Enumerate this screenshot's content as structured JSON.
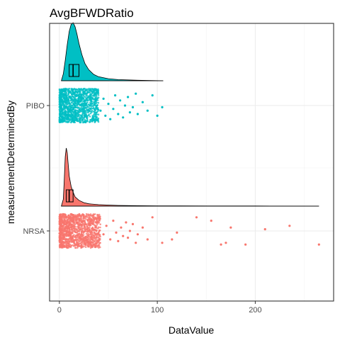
{
  "chart_data": {
    "type": "raincloud",
    "title": "AvgBFWDRatio",
    "xlabel": "DataValue",
    "ylabel": "measurementDeterminedBy",
    "xlim": [
      -10,
      280
    ],
    "x_ticks": [
      0,
      100,
      200
    ],
    "grid": true,
    "legend": "none",
    "categories": [
      "NRSA",
      "PIBO"
    ],
    "series": [
      {
        "name": "NRSA",
        "color": "#F8766D",
        "box": {
          "q1": 7,
          "median": 10,
          "q3": 14
        },
        "max": 265,
        "density": [
          [
            2,
            0
          ],
          [
            4,
            0.12
          ],
          [
            5,
            0.45
          ],
          [
            6,
            0.85
          ],
          [
            7,
            1.0
          ],
          [
            8,
            0.92
          ],
          [
            9,
            0.72
          ],
          [
            10,
            0.52
          ],
          [
            12,
            0.34
          ],
          [
            14,
            0.24
          ],
          [
            16,
            0.16
          ],
          [
            20,
            0.1
          ],
          [
            25,
            0.06
          ],
          [
            30,
            0.04
          ],
          [
            40,
            0.025
          ],
          [
            50,
            0.018
          ],
          [
            60,
            0.012
          ],
          [
            80,
            0.007
          ],
          [
            100,
            0.005
          ],
          [
            150,
            0.003
          ],
          [
            200,
            0.002
          ],
          [
            265,
            0
          ]
        ],
        "dense_range": [
          0,
          42
        ],
        "outliers": [
          [
            45,
            0.2
          ],
          [
            48,
            -0.3
          ],
          [
            52,
            0.5
          ],
          [
            55,
            -0.6
          ],
          [
            58,
            0.1
          ],
          [
            60,
            0.6
          ],
          [
            63,
            -0.2
          ],
          [
            65,
            0.3
          ],
          [
            68,
            -0.5
          ],
          [
            70,
            0.4
          ],
          [
            72,
            0.0
          ],
          [
            75,
            -0.4
          ],
          [
            78,
            0.7
          ],
          [
            80,
            0.2
          ],
          [
            85,
            -0.2
          ],
          [
            90,
            0.5
          ],
          [
            95,
            -0.8
          ],
          [
            105,
            0.7
          ],
          [
            115,
            0.5
          ],
          [
            120,
            0.1
          ],
          [
            140,
            -0.8
          ],
          [
            155,
            -0.6
          ],
          [
            165,
            0.8
          ],
          [
            170,
            0.7
          ],
          [
            175,
            -0.2
          ],
          [
            190,
            0.8
          ],
          [
            210,
            -0.1
          ],
          [
            235,
            -0.3
          ],
          [
            265,
            0.8
          ]
        ]
      },
      {
        "name": "PIBO",
        "color": "#00BFC4",
        "box": {
          "q1": 10,
          "median": 14,
          "q3": 20
        },
        "max": 106,
        "density": [
          [
            2,
            0
          ],
          [
            4,
            0.12
          ],
          [
            6,
            0.35
          ],
          [
            8,
            0.62
          ],
          [
            10,
            0.85
          ],
          [
            12,
            0.97
          ],
          [
            14,
            1.0
          ],
          [
            16,
            0.93
          ],
          [
            18,
            0.8
          ],
          [
            20,
            0.64
          ],
          [
            23,
            0.45
          ],
          [
            26,
            0.3
          ],
          [
            30,
            0.19
          ],
          [
            35,
            0.11
          ],
          [
            40,
            0.07
          ],
          [
            50,
            0.035
          ],
          [
            60,
            0.02
          ],
          [
            80,
            0.008
          ],
          [
            106,
            0
          ]
        ],
        "dense_range": [
          0,
          40
        ],
        "outliers": [
          [
            42,
            0.3
          ],
          [
            45,
            -0.4
          ],
          [
            47,
            0.6
          ],
          [
            50,
            -0.1
          ],
          [
            52,
            0.8
          ],
          [
            55,
            0.2
          ],
          [
            57,
            -0.6
          ],
          [
            60,
            0.5
          ],
          [
            62,
            -0.3
          ],
          [
            65,
            0.7
          ],
          [
            67,
            0.0
          ],
          [
            70,
            -0.5
          ],
          [
            72,
            0.4
          ],
          [
            75,
            0.1
          ],
          [
            78,
            -0.7
          ],
          [
            80,
            0.5
          ],
          [
            85,
            -0.2
          ],
          [
            90,
            0.3
          ],
          [
            95,
            -0.6
          ],
          [
            100,
            0.6
          ],
          [
            105,
            0.1
          ]
        ]
      }
    ]
  }
}
